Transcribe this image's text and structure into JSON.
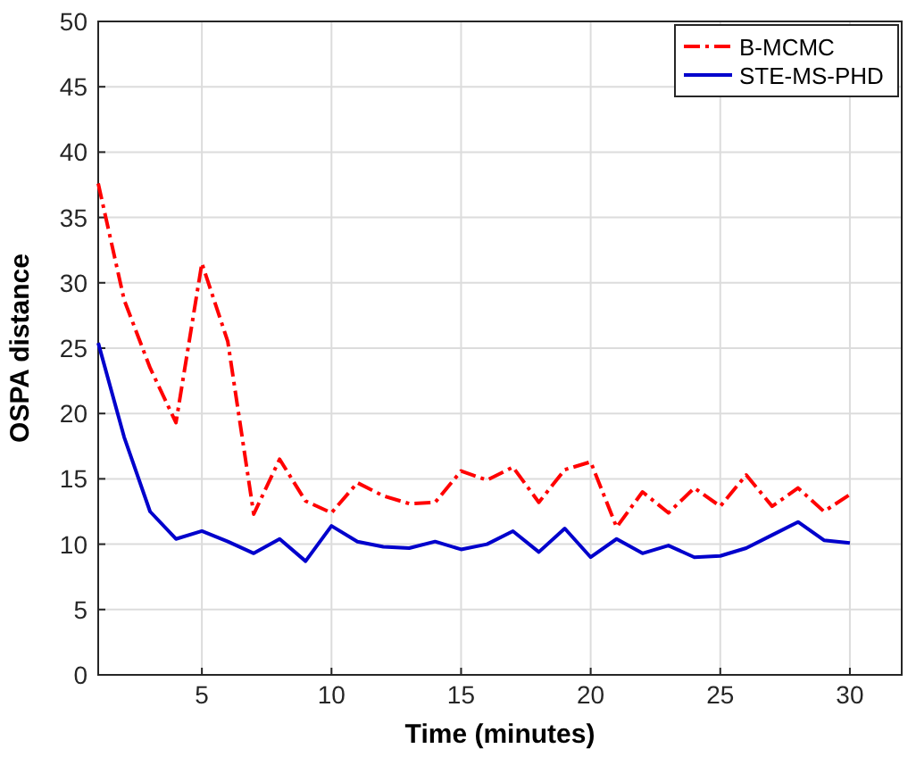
{
  "chart_data": {
    "type": "line",
    "xlabel": "Time (minutes)",
    "ylabel": "OSPA distance",
    "x": [
      1,
      2,
      3,
      4,
      5,
      6,
      7,
      8,
      9,
      10,
      11,
      12,
      13,
      14,
      15,
      16,
      17,
      18,
      19,
      20,
      21,
      22,
      23,
      24,
      25,
      26,
      27,
      28,
      29,
      30
    ],
    "series": [
      {
        "name": "B-MCMC",
        "color": "#ff0000",
        "line_style": "dashed",
        "values": [
          37.6,
          28.7,
          23.5,
          19.3,
          31.5,
          25.5,
          12.3,
          16.5,
          13.3,
          12.4,
          14.7,
          13.7,
          13.1,
          13.2,
          15.6,
          14.9,
          15.9,
          13.2,
          15.7,
          16.3,
          11.3,
          14.0,
          12.4,
          14.3,
          12.9,
          15.3,
          12.9,
          14.3,
          12.5,
          13.8
        ]
      },
      {
        "name": "STE-MS-PHD",
        "color": "#0000cc",
        "line_style": "solid",
        "values": [
          25.4,
          18.2,
          12.5,
          10.4,
          11.0,
          10.2,
          9.3,
          10.4,
          8.7,
          11.4,
          10.2,
          9.8,
          9.7,
          10.2,
          9.6,
          10.0,
          11.0,
          9.4,
          11.2,
          9.0,
          10.4,
          9.3,
          9.9,
          9.0,
          9.1,
          9.7,
          10.7,
          11.7,
          10.3,
          10.1
        ]
      }
    ],
    "xlim": [
      1,
      32
    ],
    "xticks": [
      5,
      10,
      15,
      20,
      25,
      30
    ],
    "ylim": [
      0,
      50
    ],
    "yticks": [
      0,
      5,
      10,
      15,
      20,
      25,
      30,
      35,
      40,
      45,
      50
    ],
    "grid": true,
    "legend": "top right"
  }
}
